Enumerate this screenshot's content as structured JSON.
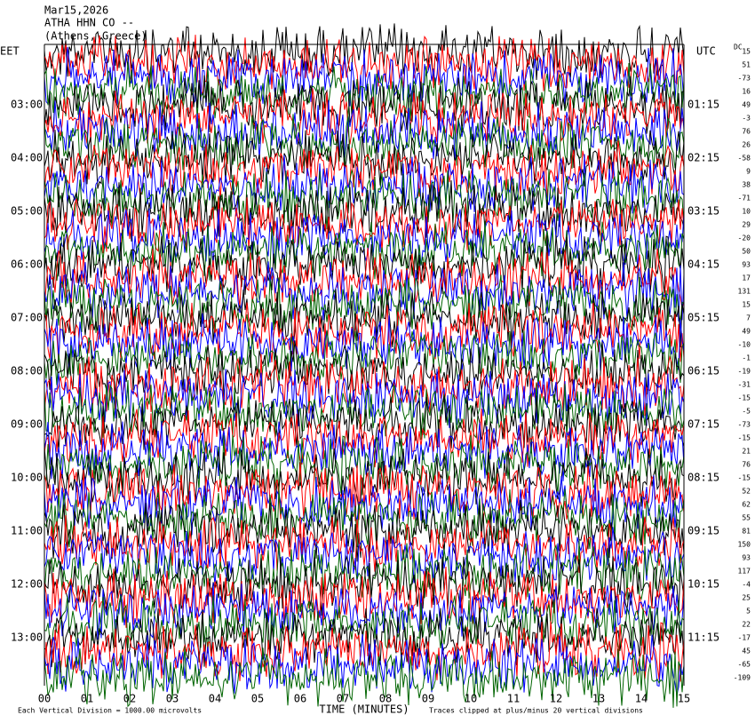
{
  "header": {
    "date": "Mar15,2026",
    "station": "ATHA HHN CO --",
    "place": "(Athens, Greece)"
  },
  "left_axis": {
    "zone": "EET",
    "labels": [
      "03:00",
      "04:00",
      "05:00",
      "06:00",
      "07:00",
      "08:00",
      "09:00",
      "10:00",
      "11:00",
      "12:00",
      "13:00"
    ]
  },
  "right_axis": {
    "zone": "UTC",
    "labels": [
      "01:15",
      "02:15",
      "03:15",
      "04:15",
      "05:15",
      "06:15",
      "07:15",
      "08:15",
      "09:15",
      "10:15",
      "11:15"
    ]
  },
  "dc": {
    "title": "DC",
    "values": [
      "15",
      "51",
      "-73",
      "16",
      "49",
      "-3",
      "76",
      "26",
      "-58",
      "9",
      "38",
      "-71",
      "10",
      "29",
      "-20",
      "50",
      "93",
      "17",
      "131",
      "15",
      "7",
      "49",
      "-10",
      "-1",
      "-19",
      "-31",
      "-15",
      "-5",
      "-73",
      "-15",
      "21",
      "76",
      "-15",
      "52",
      "62",
      "55",
      "81",
      "150",
      "93",
      "117",
      "-4",
      "25",
      "5",
      "22",
      "-17",
      "45",
      "-65",
      "-109"
    ]
  },
  "x_axis": {
    "labels": [
      "00",
      "01",
      "02",
      "03",
      "04",
      "05",
      "06",
      "07",
      "08",
      "09",
      "10",
      "11",
      "12",
      "13",
      "14",
      "15"
    ],
    "title": "TIME (MINUTES)"
  },
  "footer": {
    "scale": "Each Vertical Division = 1000.00 microvolts",
    "clip": "Traces clipped at plus/minus 20 vertical divisions"
  }
}
